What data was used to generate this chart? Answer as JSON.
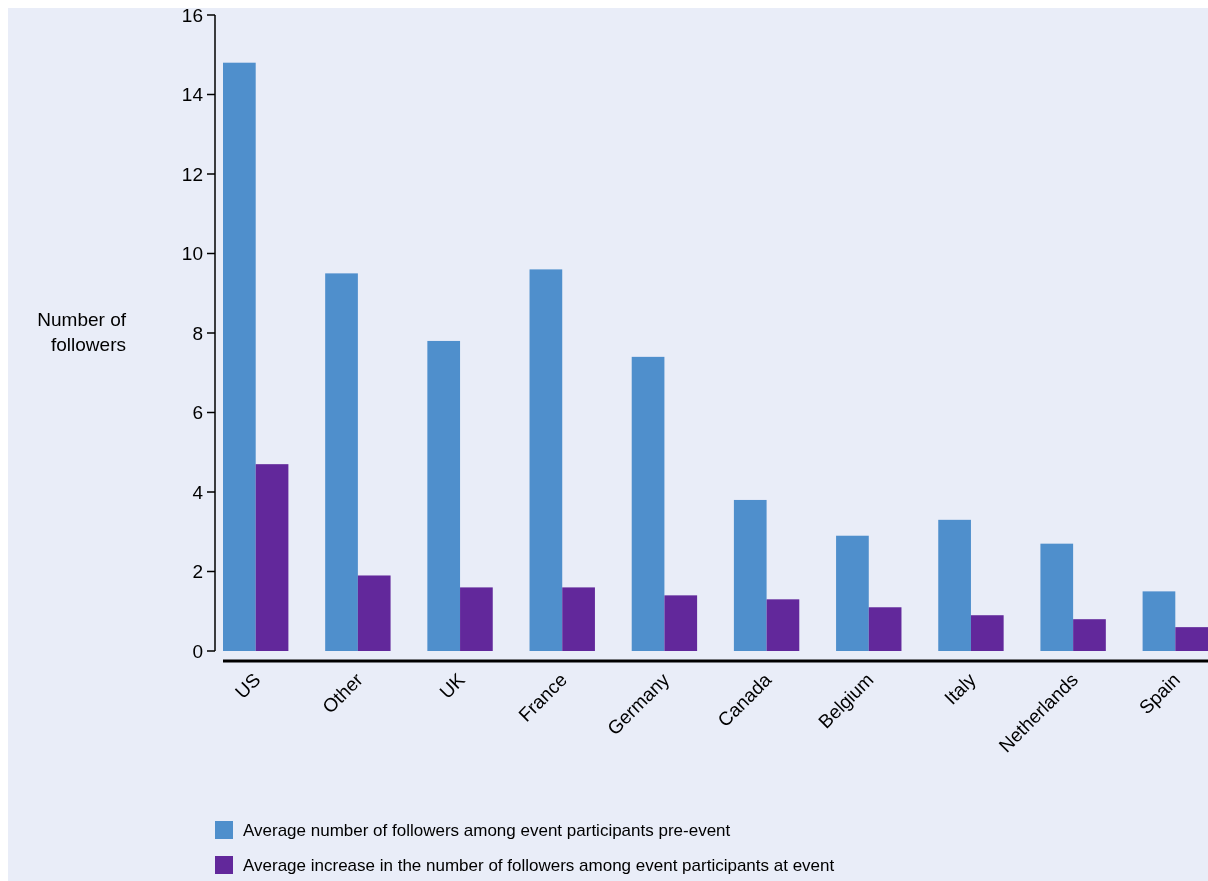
{
  "chart_data": {
    "type": "bar",
    "ylabel": "Number of followers",
    "categories": [
      "US",
      "Other",
      "UK",
      "France",
      "Germany",
      "Canada",
      "Belgium",
      "Italy",
      "Netherlands",
      "Spain"
    ],
    "series": [
      {
        "name": "Average number of followers among event participants pre-event",
        "color": "#4f8fcc",
        "values": [
          14.8,
          9.5,
          7.8,
          9.6,
          7.4,
          3.8,
          2.9,
          3.3,
          2.7,
          1.5
        ]
      },
      {
        "name": "Average increase in the number of followers among event participants at event",
        "color": "#62289b",
        "values": [
          4.7,
          1.9,
          1.6,
          1.6,
          1.4,
          1.3,
          1.1,
          0.9,
          0.8,
          0.6
        ]
      }
    ],
    "ylim": [
      0,
      16
    ],
    "yticks": [
      0,
      2,
      4,
      6,
      8,
      10,
      12,
      14,
      16
    ],
    "grid": false,
    "legend": "bottom"
  }
}
